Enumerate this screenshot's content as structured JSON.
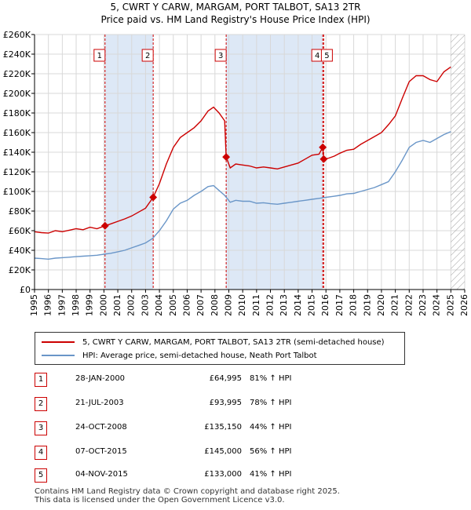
{
  "title_line1": "5, CWRT Y CARW, MARGAM, PORT TALBOT, SA13 2TR",
  "title_line2": "Price paid vs. HM Land Registry's House Price Index (HPI)",
  "legend": {
    "property": "5, CWRT Y CARW, MARGAM, PORT TALBOT, SA13 2TR (semi-detached house)",
    "hpi": "HPI: Average price, semi-detached house, Neath Port Talbot"
  },
  "colors": {
    "property": "#cc0000",
    "hpi": "#6a96c8",
    "shade": "#dde8f6",
    "marker": "#cc0000"
  },
  "transactions": [
    {
      "num": "1",
      "date": "28-JAN-2000",
      "price": "£64,995",
      "hpi": "81% ↑ HPI"
    },
    {
      "num": "2",
      "date": "21-JUL-2003",
      "price": "£93,995",
      "hpi": "78% ↑ HPI"
    },
    {
      "num": "3",
      "date": "24-OCT-2008",
      "price": "£135,150",
      "hpi": "44% ↑ HPI"
    },
    {
      "num": "4",
      "date": "07-OCT-2015",
      "price": "£145,000",
      "hpi": "56% ↑ HPI"
    },
    {
      "num": "5",
      "date": "04-NOV-2015",
      "price": "£133,000",
      "hpi": "41% ↑ HPI"
    }
  ],
  "footer_line1": "Contains HM Land Registry data © Crown copyright and database right 2025.",
  "footer_line2": "This data is licensed under the Open Government Licence v3.0.",
  "chart_data": {
    "type": "line",
    "title": "5, CWRT Y CARW, MARGAM, PORT TALBOT, SA13 2TR",
    "subtitle": "Price paid vs. HM Land Registry's House Price Index (HPI)",
    "xlabel": "",
    "ylabel": "",
    "xlim": [
      1995,
      2026
    ],
    "ylim": [
      0,
      260000
    ],
    "grid": true,
    "x_ticks": [
      1995,
      1996,
      1997,
      1998,
      1999,
      2000,
      2001,
      2002,
      2003,
      2004,
      2005,
      2006,
      2007,
      2008,
      2009,
      2010,
      2011,
      2012,
      2013,
      2014,
      2015,
      2016,
      2017,
      2018,
      2019,
      2020,
      2021,
      2022,
      2023,
      2024,
      2025,
      2026
    ],
    "y_ticks": [
      0,
      20000,
      40000,
      60000,
      80000,
      100000,
      120000,
      140000,
      160000,
      180000,
      200000,
      220000,
      240000,
      260000
    ],
    "y_tick_labels": [
      "£0",
      "£20K",
      "£40K",
      "£60K",
      "£80K",
      "£100K",
      "£120K",
      "£140K",
      "£160K",
      "£180K",
      "£200K",
      "£220K",
      "£240K",
      "£260K"
    ],
    "shaded_ranges": [
      [
        2000.08,
        2003.55
      ],
      [
        2008.81,
        2015.77
      ]
    ],
    "hatched_from": 2025.0,
    "sales": [
      {
        "label": "1",
        "x": 2000.08,
        "y": 64995
      },
      {
        "label": "2",
        "x": 2003.55,
        "y": 93995
      },
      {
        "label": "3",
        "x": 2008.81,
        "y": 135150
      },
      {
        "label": "4",
        "x": 2015.77,
        "y": 145000
      },
      {
        "label": "5",
        "x": 2015.84,
        "y": 133000
      }
    ],
    "series": [
      {
        "name": "5, CWRT Y CARW, MARGAM, PORT TALBOT, SA13 2TR (semi-detached house)",
        "x": [
          1995,
          1995.5,
          1996,
          1996.5,
          1997,
          1997.5,
          1998,
          1998.5,
          1999,
          1999.5,
          2000.08,
          2000.5,
          2001,
          2001.5,
          2002,
          2002.5,
          2003,
          2003.55,
          2004,
          2004.5,
          2005,
          2005.5,
          2006,
          2006.5,
          2007,
          2007.5,
          2007.9,
          2008.3,
          2008.7,
          2008.81,
          2009.1,
          2009.5,
          2010,
          2010.5,
          2011,
          2011.5,
          2012,
          2012.5,
          2013,
          2013.5,
          2014,
          2014.5,
          2015,
          2015.5,
          2015.77,
          2015.84,
          2016.2,
          2016.6,
          2017,
          2017.5,
          2018,
          2018.5,
          2019,
          2019.5,
          2020,
          2020.5,
          2021,
          2021.5,
          2022,
          2022.5,
          2023,
          2023.5,
          2024,
          2024.5,
          2025.0
        ],
        "y": [
          59000,
          58000,
          57500,
          60000,
          59000,
          60500,
          62000,
          61000,
          63500,
          62000,
          64995,
          67000,
          69500,
          72000,
          75000,
          79000,
          83000,
          93995,
          108000,
          128000,
          145000,
          155000,
          160000,
          165000,
          172000,
          182000,
          186000,
          180000,
          172000,
          135150,
          124000,
          128000,
          127000,
          126000,
          124000,
          125000,
          124000,
          123000,
          125000,
          127000,
          129000,
          133000,
          137000,
          138000,
          145000,
          133000,
          134000,
          136000,
          139000,
          142000,
          143000,
          148000,
          152000,
          156000,
          160000,
          168000,
          177000,
          195000,
          212000,
          218000,
          218000,
          214000,
          212000,
          222000,
          227000
        ]
      },
      {
        "name": "HPI: Average price, semi-detached house, Neath Port Talbot",
        "x": [
          1995,
          1995.5,
          1996,
          1996.5,
          1997,
          1997.5,
          1998,
          1998.5,
          1999,
          1999.5,
          2000,
          2000.5,
          2001,
          2001.5,
          2002,
          2002.5,
          2003,
          2003.5,
          2004,
          2004.5,
          2005,
          2005.5,
          2006,
          2006.5,
          2007,
          2007.5,
          2007.9,
          2008.3,
          2008.7,
          2009.1,
          2009.5,
          2010,
          2010.5,
          2011,
          2011.5,
          2012,
          2012.5,
          2013,
          2013.5,
          2014,
          2014.5,
          2015,
          2015.5,
          2016,
          2016.5,
          2017,
          2017.5,
          2018,
          2018.5,
          2019,
          2019.5,
          2020,
          2020.5,
          2021,
          2021.5,
          2022,
          2022.5,
          2023,
          2023.5,
          2024,
          2024.5,
          2025.0
        ],
        "y": [
          32000,
          31500,
          31000,
          32000,
          32500,
          33000,
          33500,
          34000,
          34500,
          35000,
          36000,
          37000,
          38500,
          40000,
          42500,
          45000,
          47500,
          52000,
          60000,
          70000,
          82000,
          88000,
          91000,
          96000,
          100000,
          105000,
          106000,
          101000,
          96000,
          89000,
          91000,
          90000,
          90000,
          88000,
          88500,
          87500,
          87000,
          88000,
          89000,
          90000,
          91000,
          92000,
          93000,
          94000,
          95000,
          96000,
          97500,
          98000,
          100000,
          102000,
          104000,
          107000,
          110000,
          120000,
          132000,
          145000,
          150000,
          152000,
          150000,
          154000,
          158000,
          161000
        ]
      }
    ]
  }
}
